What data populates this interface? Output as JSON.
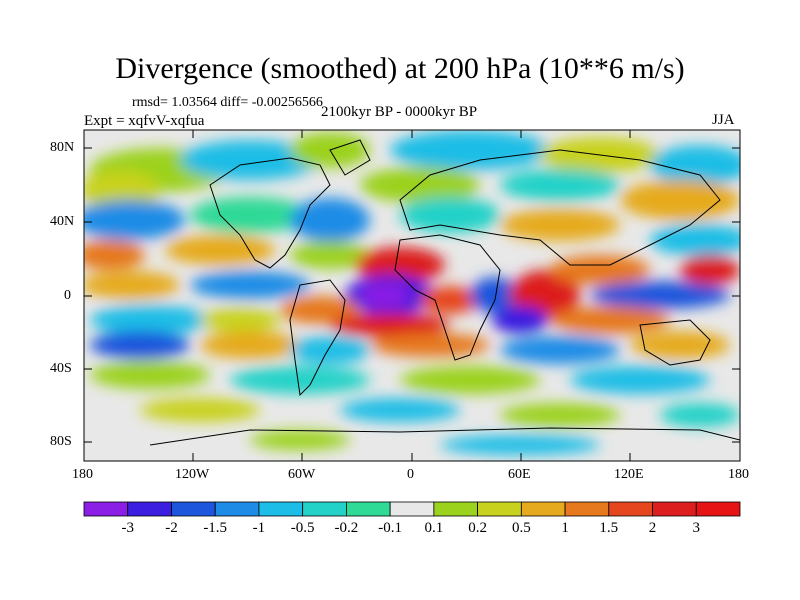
{
  "title": "Divergence (smoothed) at 200 hPa (10**6 m/s)",
  "stats": "rmsd= 1.03564 diff= -0.00256566",
  "experiment": "Expt = xqfvV-xqfua",
  "period": "2100kyr BP - 0000kyr BP",
  "season": "JJA",
  "lat_ticks": [
    "80N",
    "40N",
    "0",
    "40S",
    "80S"
  ],
  "lon_ticks": [
    "180",
    "120W",
    "60W",
    "0",
    "60E",
    "120E",
    "180"
  ],
  "colorbar": {
    "labels": [
      "-3",
      "-2",
      "-1.5",
      "-1",
      "-0.5",
      "-0.2",
      "-0.1",
      "0.1",
      "0.2",
      "0.5",
      "1",
      "1.5",
      "2",
      "3"
    ],
    "colors": [
      "#8c1fe6",
      "#3b1ee0",
      "#1d55dc",
      "#1e8ce6",
      "#1cbde6",
      "#22d2c8",
      "#2fd996",
      "#e8e8e8",
      "#9bd21e",
      "#c8d21e",
      "#e6aa1e",
      "#e6781e",
      "#e6461e",
      "#dc1e1e",
      "#e61414"
    ]
  },
  "colors": {
    "land_outline": "#000000",
    "frame": "#000000"
  }
}
